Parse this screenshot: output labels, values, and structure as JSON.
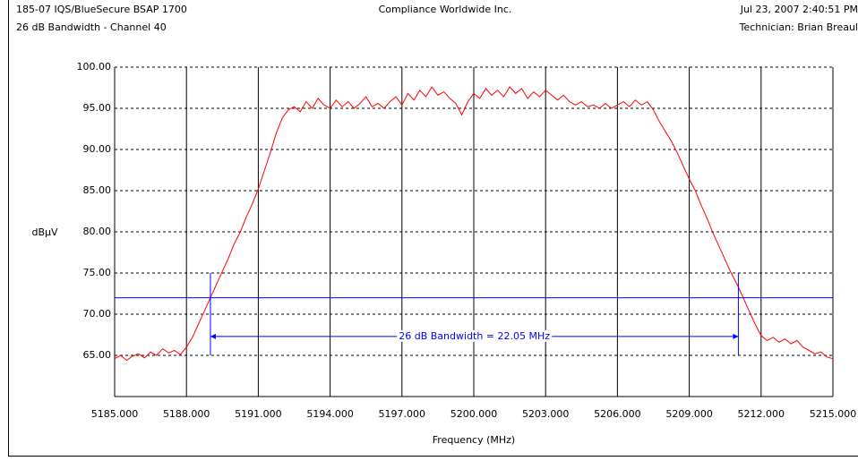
{
  "chart_data": {
    "type": "line",
    "header_left": "185-07 IQS/BlueSecure BSAP 1700",
    "header_center": "Compliance Worldwide Inc.",
    "header_right": "Jul 23, 2007  2:40:51 PM",
    "title": "26 dB Bandwidth - Channel 40",
    "technician": "Technician: Brian Breaul",
    "ylabel": "dBµV",
    "xlabel": "Frequency (MHz)",
    "color": "#ff0000",
    "grid": true,
    "xlim": [
      5185,
      5215
    ],
    "ylim": [
      60,
      100
    ],
    "xticks": [
      {
        "value": 5185,
        "label": "5185.000"
      },
      {
        "value": 5188,
        "label": "5188.000"
      },
      {
        "value": 5191,
        "label": "5191.000"
      },
      {
        "value": 5194,
        "label": "5194.000"
      },
      {
        "value": 5197,
        "label": "5197.000"
      },
      {
        "value": 5200,
        "label": "5200.000"
      },
      {
        "value": 5203,
        "label": "5203.000"
      },
      {
        "value": 5206,
        "label": "5206.000"
      },
      {
        "value": 5209,
        "label": "5209.000"
      },
      {
        "value": 5212,
        "label": "5212.000"
      },
      {
        "value": 5215,
        "label": "5215.000"
      }
    ],
    "yticks": [
      {
        "value": 65,
        "label": "65.00"
      },
      {
        "value": 70,
        "label": "70.00"
      },
      {
        "value": 75,
        "label": "75.00"
      },
      {
        "value": 80,
        "label": "80.00"
      },
      {
        "value": 85,
        "label": "85.00"
      },
      {
        "value": 90,
        "label": "90.00"
      },
      {
        "value": 95,
        "label": "95.00"
      },
      {
        "value": 100,
        "label": "100.00"
      }
    ],
    "x": [
      5185,
      5185.25,
      5185.5,
      5185.75,
      5186,
      5186.25,
      5186.5,
      5186.75,
      5187,
      5187.25,
      5187.5,
      5187.75,
      5188,
      5188.25,
      5188.5,
      5188.75,
      5189,
      5189.25,
      5189.5,
      5189.75,
      5190,
      5190.25,
      5190.5,
      5190.75,
      5191,
      5191.25,
      5191.5,
      5191.75,
      5192,
      5192.25,
      5192.5,
      5192.75,
      5193,
      5193.25,
      5193.5,
      5193.75,
      5194,
      5194.25,
      5194.5,
      5194.75,
      5195,
      5195.25,
      5195.5,
      5195.75,
      5196,
      5196.25,
      5196.5,
      5196.75,
      5197,
      5197.25,
      5197.5,
      5197.75,
      5198,
      5198.25,
      5198.5,
      5198.75,
      5199,
      5199.25,
      5199.5,
      5199.75,
      5200,
      5200.25,
      5200.5,
      5200.75,
      5201,
      5201.25,
      5201.5,
      5201.75,
      5202,
      5202.25,
      5202.5,
      5202.75,
      5203,
      5203.25,
      5203.5,
      5203.75,
      5204,
      5204.25,
      5204.5,
      5204.75,
      5205,
      5205.25,
      5205.5,
      5205.75,
      5206,
      5206.25,
      5206.5,
      5206.75,
      5207,
      5207.25,
      5207.5,
      5207.75,
      5208,
      5208.25,
      5208.5,
      5208.75,
      5209,
      5209.25,
      5209.5,
      5209.75,
      5210,
      5210.25,
      5210.5,
      5210.75,
      5211,
      5211.25,
      5211.5,
      5211.75,
      5212,
      5212.25,
      5212.5,
      5212.75,
      5213,
      5213.25,
      5213.5,
      5213.75,
      5214,
      5214.25,
      5214.5,
      5214.75,
      5215
    ],
    "values": [
      64.6,
      65.0,
      64.4,
      64.9,
      65.2,
      64.7,
      65.4,
      65.0,
      65.8,
      65.3,
      65.6,
      65.1,
      66.0,
      67.2,
      68.8,
      70.4,
      72.0,
      73.6,
      75.2,
      76.8,
      78.6,
      80.0,
      81.8,
      83.4,
      85.2,
      87.4,
      89.6,
      92.0,
      93.8,
      94.8,
      95.2,
      94.6,
      95.8,
      95.0,
      96.2,
      95.4,
      95.0,
      96.0,
      95.2,
      95.8,
      95.0,
      95.6,
      96.4,
      95.2,
      95.6,
      95.0,
      95.8,
      96.4,
      95.4,
      96.8,
      96.0,
      97.2,
      96.4,
      97.6,
      96.6,
      97.0,
      96.2,
      95.6,
      94.2,
      95.8,
      96.8,
      96.2,
      97.4,
      96.6,
      97.2,
      96.4,
      97.6,
      96.8,
      97.4,
      96.2,
      97.0,
      96.4,
      97.2,
      96.6,
      96.0,
      96.6,
      95.8,
      95.4,
      95.8,
      95.2,
      95.4,
      95.0,
      95.6,
      95.0,
      95.4,
      95.8,
      95.2,
      96.0,
      95.4,
      95.8,
      94.8,
      93.4,
      92.2,
      91.0,
      89.6,
      88.0,
      86.4,
      85.0,
      83.2,
      81.6,
      79.8,
      78.2,
      76.6,
      75.0,
      73.6,
      72.0,
      70.4,
      68.8,
      67.4,
      66.8,
      67.2,
      66.6,
      67.0,
      66.4,
      66.8,
      66.0,
      65.6,
      65.2,
      65.4,
      64.8,
      64.6
    ],
    "annotation": {
      "text": "26 dB Bandwidth = 22.05 MHz",
      "color": "#0000ff",
      "threshold": 72,
      "markers": [
        5189.0,
        5211.05
      ],
      "marker_ylim": [
        65,
        75
      ],
      "arrow_y": 67.3
    }
  }
}
